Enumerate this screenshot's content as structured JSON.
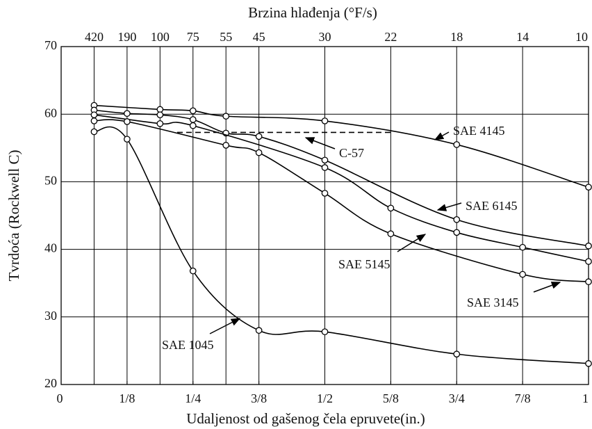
{
  "chart_data": {
    "type": "line",
    "top_axis": {
      "label": "Brzina hlađenja (°F/s)",
      "ticks": [
        {
          "x": 0.0625,
          "rate": 420
        },
        {
          "x": 0.125,
          "rate": 190
        },
        {
          "x": 0.1875,
          "rate": 100
        },
        {
          "x": 0.25,
          "rate": 75
        },
        {
          "x": 0.3125,
          "rate": 55
        },
        {
          "x": 0.375,
          "rate": 45
        },
        {
          "x": 0.5,
          "rate": 30
        },
        {
          "x": 0.625,
          "rate": 22
        },
        {
          "x": 0.75,
          "rate": 18
        },
        {
          "x": 0.875,
          "rate": 14
        },
        {
          "x": 1,
          "rate": 10
        }
      ]
    },
    "xlabel": "Udaljenost od gašenog čela epruvete(in.)",
    "ylabel": "Tvrdoća (Rockwell C)",
    "xlim": [
      0,
      1
    ],
    "xticks": [
      0,
      {
        "value": 0.125,
        "label": "1/8"
      },
      {
        "value": 0.25,
        "label": "1/4"
      },
      {
        "value": 0.375,
        "label": "3/8"
      },
      {
        "value": 0.5,
        "label": "1/2"
      },
      {
        "value": 0.625,
        "label": "5/8"
      },
      {
        "value": 0.75,
        "label": "3/4"
      },
      {
        "value": 0.875,
        "label": "7/8"
      },
      1
    ],
    "ylim": [
      20,
      70
    ],
    "yticks": [
      20,
      30,
      40,
      50,
      60,
      70
    ],
    "grid": true,
    "series": [
      {
        "name": "SAE 4145",
        "color": "#000000",
        "x": [
          0.0625,
          0.1875,
          0.25,
          0.3125,
          0.5,
          0.75,
          1
        ],
        "values": [
          61.3,
          60.7,
          60.5,
          59.7,
          59,
          55.5,
          49.2
        ]
      },
      {
        "name": "C-57",
        "color": "#000000",
        "dashed": true,
        "x": [
          0.22,
          0.625
        ],
        "values": [
          57.3,
          57.3
        ]
      },
      {
        "name": "SAE 6145",
        "color": "#000000",
        "x": [
          0.0625,
          0.125,
          0.1875,
          0.25,
          0.3125,
          0.375,
          0.5,
          0.75,
          1
        ],
        "values": [
          60.6,
          60.1,
          59.9,
          59.2,
          57.2,
          56.7,
          53.2,
          44.4,
          40.5
        ]
      },
      {
        "name": "SAE 5145",
        "color": "#000000",
        "x": [
          0.0625,
          0.1875,
          0.25,
          0.5,
          0.625,
          0.75,
          0.875,
          1
        ],
        "values": [
          59.9,
          58.6,
          58.3,
          52.1,
          46.1,
          42.5,
          40.3,
          38.2
        ]
      },
      {
        "name": "SAE 3145",
        "color": "#000000",
        "x": [
          0.0625,
          0.125,
          0.3125,
          0.375,
          0.5,
          0.625,
          0.875,
          1
        ],
        "values": [
          59,
          58.9,
          55.4,
          54.3,
          48.3,
          42.3,
          36.3,
          35.2
        ]
      },
      {
        "name": "SAE 1045",
        "color": "#000000",
        "x": [
          0.0625,
          0.125,
          0.25,
          0.375,
          0.5,
          0.75,
          1
        ],
        "values": [
          57.4,
          56.3,
          36.8,
          28,
          27.8,
          24.5,
          23.1
        ]
      }
    ]
  }
}
